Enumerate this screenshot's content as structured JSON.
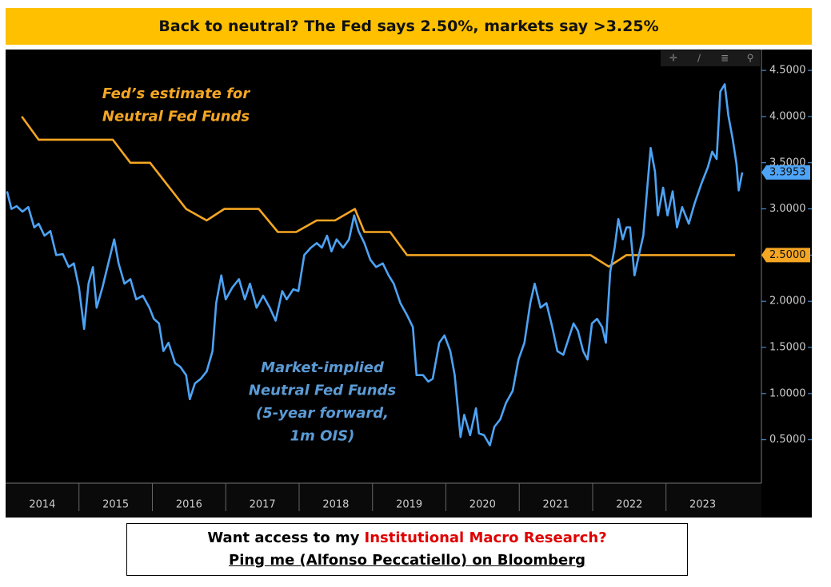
{
  "chart_data": {
    "type": "line",
    "title": "Back to neutral? The Fed says 2.50%, markets say >3.25%",
    "annotations": [
      {
        "lines": [
          "Fed’s estimate for",
          "Neutral Fed Funds"
        ],
        "color": "#f5a623"
      },
      {
        "lines": [
          "Market-implied",
          "Neutral Fed Funds",
          "(5-year forward,",
          "1m OIS)"
        ],
        "color": "#5b9bd5"
      }
    ],
    "footer": {
      "line1": [
        "Want access to my",
        "Institutional Macro Research?"
      ],
      "line2": "Ping me (Alfonso Peccatiello) on Bloomberg"
    },
    "xlim": [
      2014.0,
      2024.3
    ],
    "xticks": [
      {
        "value": 2014.5,
        "label": "2014"
      },
      {
        "value": 2015.5,
        "label": "2015"
      },
      {
        "value": 2016.5,
        "label": "2016"
      },
      {
        "value": 2017.5,
        "label": "2017"
      },
      {
        "value": 2018.5,
        "label": "2018"
      },
      {
        "value": 2019.5,
        "label": "2019"
      },
      {
        "value": 2020.5,
        "label": "2020"
      },
      {
        "value": 2021.5,
        "label": "2021"
      },
      {
        "value": 2022.5,
        "label": "2022"
      },
      {
        "value": 2023.5,
        "label": "2023"
      }
    ],
    "ylim": [
      0.03,
      4.7
    ],
    "yticks": [
      {
        "value": 0.5,
        "label": "0.5000"
      },
      {
        "value": 1,
        "label": "1.0000"
      },
      {
        "value": 1.5,
        "label": "1.5000"
      },
      {
        "value": 2,
        "label": "2.0000"
      },
      {
        "value": 2.5,
        "label": "2.5000"
      },
      {
        "value": 3,
        "label": "3.0000"
      },
      {
        "value": 3.5,
        "label": "3.5000"
      },
      {
        "value": 4,
        "label": "4.0000"
      },
      {
        "value": 4.5,
        "label": "4.5000"
      }
    ],
    "series": [
      {
        "name": "Fed’s estimate for Neutral Fed Funds",
        "color": "#f5a623",
        "x": [
          2014.22,
          2014.45,
          2015.46,
          2015.7,
          2015.97,
          2016.46,
          2016.74,
          2016.98,
          2017.45,
          2017.71,
          2017.96,
          2018.24,
          2018.49,
          2018.76,
          2018.89,
          2019.24,
          2019.47,
          2021.97,
          2022.22,
          2022.46,
          2023.94
        ],
        "values": [
          4.0,
          3.75,
          3.75,
          3.5,
          3.5,
          3.0,
          2.875,
          3.0,
          3.0,
          2.75,
          2.75,
          2.875,
          2.875,
          3.0,
          2.75,
          2.75,
          2.5,
          2.5,
          2.375,
          2.5,
          2.5
        ],
        "end_label": {
          "value": 2.5,
          "label": "2.5000"
        }
      },
      {
        "name": "Market-implied Neutral Fed Funds",
        "color": "#4da3f5",
        "x": [
          2014.02,
          2014.08,
          2014.15,
          2014.23,
          2014.31,
          2014.39,
          2014.45,
          2014.53,
          2014.61,
          2014.69,
          2014.78,
          2014.86,
          2014.93,
          2015.0,
          2015.07,
          2015.13,
          2015.19,
          2015.24,
          2015.32,
          2015.4,
          2015.48,
          2015.54,
          2015.62,
          2015.7,
          2015.78,
          2015.87,
          2015.96,
          2016.02,
          2016.09,
          2016.15,
          2016.22,
          2016.31,
          2016.38,
          2016.46,
          2016.51,
          2016.58,
          2016.66,
          2016.74,
          2016.82,
          2016.87,
          2016.94,
          2017.0,
          2017.09,
          2017.18,
          2017.26,
          2017.33,
          2017.42,
          2017.51,
          2017.6,
          2017.68,
          2017.77,
          2017.83,
          2017.92,
          2017.99,
          2018.07,
          2018.16,
          2018.24,
          2018.31,
          2018.38,
          2018.44,
          2018.51,
          2018.6,
          2018.68,
          2018.75,
          2018.81,
          2018.89,
          2018.97,
          2019.05,
          2019.14,
          2019.22,
          2019.29,
          2019.38,
          2019.47,
          2019.55,
          2019.6,
          2019.69,
          2019.76,
          2019.82,
          2019.91,
          2019.98,
          2020.06,
          2020.12,
          2020.2,
          2020.25,
          2020.33,
          2020.41,
          2020.45,
          2020.52,
          2020.6,
          2020.66,
          2020.74,
          2020.82,
          2020.91,
          2020.99,
          2021.07,
          2021.15,
          2021.21,
          2021.29,
          2021.37,
          2021.45,
          2021.52,
          2021.6,
          2021.67,
          2021.74,
          2021.8,
          2021.87,
          2021.93,
          2021.99,
          2022.06,
          2022.13,
          2022.18,
          2022.24,
          2022.3,
          2022.35,
          2022.41,
          2022.46,
          2022.51,
          2022.57,
          2022.63,
          2022.69,
          2022.74,
          2022.79,
          2022.85,
          2022.89,
          2022.96,
          2023.02,
          2023.09,
          2023.15,
          2023.22,
          2023.31,
          2023.39,
          2023.48,
          2023.57,
          2023.63,
          2023.69,
          2023.74,
          2023.8,
          2023.85,
          2023.91,
          2023.96,
          2023.99,
          2024.04
        ],
        "values": [
          3.19,
          3.0,
          3.03,
          2.97,
          3.02,
          2.8,
          2.84,
          2.71,
          2.76,
          2.5,
          2.51,
          2.37,
          2.41,
          2.15,
          1.7,
          2.19,
          2.37,
          1.93,
          2.15,
          2.41,
          2.67,
          2.41,
          2.19,
          2.24,
          2.02,
          2.06,
          1.93,
          1.81,
          1.76,
          1.46,
          1.55,
          1.33,
          1.29,
          1.2,
          0.94,
          1.11,
          1.16,
          1.24,
          1.46,
          1.98,
          2.28,
          2.02,
          2.15,
          2.24,
          2.02,
          2.19,
          1.93,
          2.06,
          1.93,
          1.79,
          2.11,
          2.02,
          2.13,
          2.11,
          2.5,
          2.58,
          2.63,
          2.58,
          2.71,
          2.54,
          2.67,
          2.58,
          2.67,
          2.93,
          2.76,
          2.63,
          2.45,
          2.37,
          2.41,
          2.28,
          2.19,
          1.98,
          1.85,
          1.72,
          1.2,
          1.2,
          1.13,
          1.16,
          1.55,
          1.63,
          1.46,
          1.2,
          0.53,
          0.77,
          0.55,
          0.84,
          0.57,
          0.55,
          0.44,
          0.64,
          0.72,
          0.9,
          1.03,
          1.37,
          1.55,
          1.98,
          2.19,
          1.93,
          1.98,
          1.72,
          1.46,
          1.42,
          1.59,
          1.76,
          1.68,
          1.46,
          1.37,
          1.76,
          1.81,
          1.72,
          1.55,
          2.32,
          2.58,
          2.89,
          2.67,
          2.8,
          2.8,
          2.28,
          2.5,
          2.71,
          3.19,
          3.66,
          3.4,
          2.93,
          3.23,
          2.93,
          3.19,
          2.8,
          3.02,
          2.84,
          3.06,
          3.27,
          3.45,
          3.62,
          3.54,
          4.27,
          4.35,
          4.01,
          3.75,
          3.49,
          3.2,
          3.3953
        ],
        "end_label": {
          "value": 3.3953,
          "label": "3.3953"
        }
      }
    ]
  }
}
